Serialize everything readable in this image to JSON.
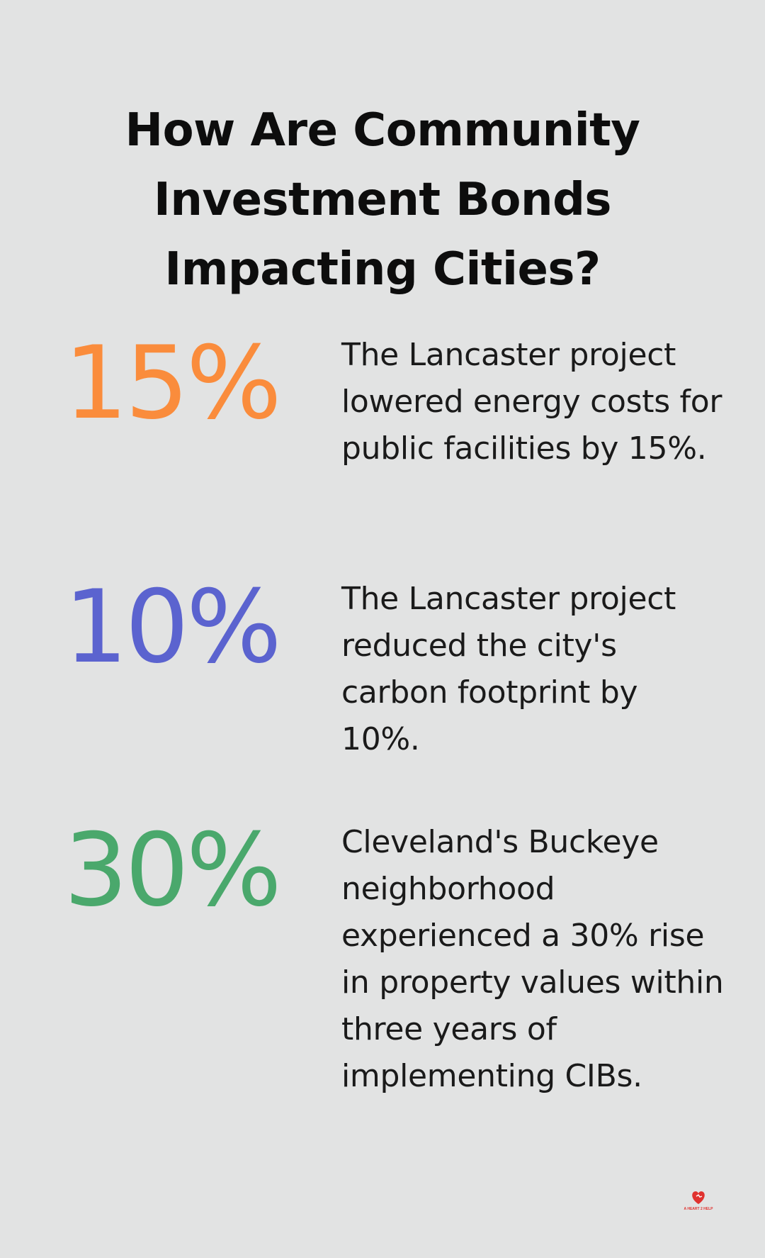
{
  "title": "How Are Community Investment Bonds Impacting Cities?",
  "stats": [
    {
      "value": "15%",
      "color": "#fa8c3c",
      "description": "The Lancaster project lowered energy costs for public facilities by 15%."
    },
    {
      "value": "10%",
      "color": "#5b63cf",
      "description": "The Lancaster project reduced the city's carbon footprint by 10%."
    },
    {
      "value": "30%",
      "color": "#4aa86c",
      "description": "Cleveland's Buckeye neighborhood experienced a 30% rise in property values within three years of implementing CIBs."
    }
  ],
  "logo": {
    "icon": "heart-logo-icon",
    "text": "A HEART 2 HELP",
    "color": "#e0322f"
  }
}
